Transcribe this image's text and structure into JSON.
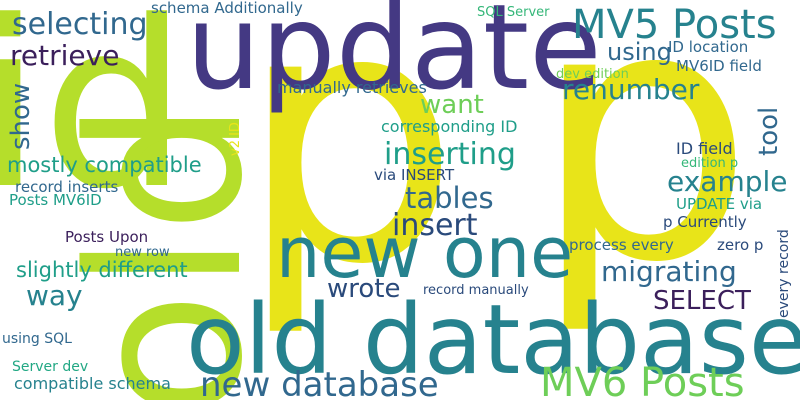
{
  "palette": {
    "yellow": "#e8e419",
    "lime": "#b5de2b",
    "indigo": "#443983",
    "purple": "#46327e",
    "dark": "#3b1f5b",
    "teal": "#26828e",
    "blue": "#31688e",
    "navy": "#2a4a7b",
    "green": "#35b779",
    "lightgreen": "#6ece58",
    "aqua": "#1f9e89",
    "seagreen": "#22a884",
    "mint": "#3fbc73"
  },
  "words": [
    {
      "text": "p"
    },
    {
      "text": "p"
    },
    {
      "text": "id"
    },
    {
      "text": "old"
    },
    {
      "text": "update"
    },
    {
      "text": "old database"
    },
    {
      "text": "new one"
    },
    {
      "text": "MV5 Posts"
    },
    {
      "text": "MV6 Posts"
    },
    {
      "text": "new database"
    },
    {
      "text": "selecting"
    },
    {
      "text": "retrieve"
    },
    {
      "text": "schema Additionally"
    },
    {
      "text": "SQL Server"
    },
    {
      "text": "using"
    },
    {
      "text": "ID location"
    },
    {
      "text": "MV6ID field"
    },
    {
      "text": "dev edition"
    },
    {
      "text": "renumber"
    },
    {
      "text": "manually retrieves"
    },
    {
      "text": "want"
    },
    {
      "text": "tool"
    },
    {
      "text": "show"
    },
    {
      "text": "corresponding ID"
    },
    {
      "text": "v2 ID"
    },
    {
      "text": "inserting"
    },
    {
      "text": "ID field"
    },
    {
      "text": "mostly compatible"
    },
    {
      "text": "edition p"
    },
    {
      "text": "example"
    },
    {
      "text": "via INSERT"
    },
    {
      "text": "record inserts"
    },
    {
      "text": "tables"
    },
    {
      "text": "Posts MV6ID"
    },
    {
      "text": "UPDATE via"
    },
    {
      "text": "insert"
    },
    {
      "text": "p Currently"
    },
    {
      "text": "every record"
    },
    {
      "text": "Posts Upon"
    },
    {
      "text": "process every"
    },
    {
      "text": "zero p"
    },
    {
      "text": "new row"
    },
    {
      "text": "migrating"
    },
    {
      "text": "slightly different"
    },
    {
      "text": "wrote"
    },
    {
      "text": "way"
    },
    {
      "text": "SELECT"
    },
    {
      "text": "record manually"
    },
    {
      "text": "using SQL"
    },
    {
      "text": "Server dev"
    },
    {
      "text": "compatible schema"
    }
  ]
}
